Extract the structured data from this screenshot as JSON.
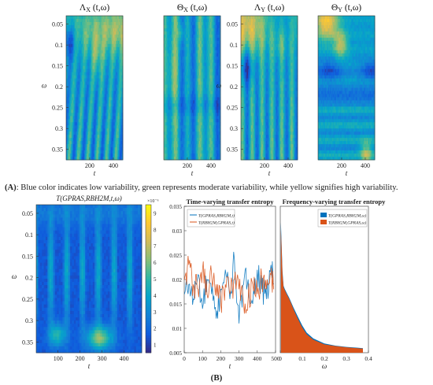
{
  "panel_a": {
    "caption_label": "(A)",
    "caption_text": ": Blue color indicates low variability, green represents moderate variability, while yellow signifies high variability."
  },
  "panel_b": {
    "caption_label": "(B)"
  },
  "palette": [
    "#352a87",
    "#0f5cdd",
    "#1481d6",
    "#06a4ca",
    "#2eb7a4",
    "#87bf77",
    "#d1bb59",
    "#fec832",
    "#f9fb0e"
  ],
  "chart_data": [
    {
      "type": "heatmap",
      "title": "Λ_X (t,ω)",
      "title_main": "Λ",
      "title_sub": "X",
      "title_args": "(t,ω)",
      "xlabel": "t",
      "ylabel": "ω",
      "xticks": [
        200,
        400
      ],
      "xlim": [
        1,
        480
      ],
      "yticks": [
        0.05,
        0.1,
        0.15,
        0.2,
        0.25,
        0.3,
        0.35
      ],
      "ylim": [
        0.03,
        0.375
      ],
      "grid": false
    },
    {
      "type": "heatmap",
      "title": "Θ_X (t,ω)",
      "title_main": "Θ",
      "title_sub": "X",
      "title_args": "(t,ω)",
      "xlabel": "t",
      "ylabel": "",
      "xticks": [
        200,
        400
      ],
      "xlim": [
        1,
        480
      ],
      "yticks": [],
      "ylim": [
        0.03,
        0.375
      ],
      "grid": false
    },
    {
      "type": "heatmap",
      "title": "Λ_Y (t,ω)",
      "title_main": "Λ",
      "title_sub": "Y",
      "title_args": "(t,ω)",
      "xlabel": "t",
      "ylabel": "ω",
      "xticks": [
        200,
        400
      ],
      "xlim": [
        1,
        480
      ],
      "yticks": [
        0.05,
        0.1,
        0.15,
        0.2,
        0.25,
        0.3,
        0.35
      ],
      "ylim": [
        0.03,
        0.375
      ],
      "grid": false
    },
    {
      "type": "heatmap",
      "title": "Θ_Y (t,ω)",
      "title_main": "Θ",
      "title_sub": "Y",
      "title_args": "(t,ω)",
      "xlabel": "t",
      "ylabel": "",
      "xticks": [
        200,
        400
      ],
      "xlim": [
        1,
        480
      ],
      "yticks": [],
      "ylim": [
        0.03,
        0.375
      ],
      "grid": false
    },
    {
      "type": "heatmap",
      "title": "T(GPRAS,RBH2M,t,ω)",
      "xlabel": "t",
      "ylabel": "ω",
      "xticks": [
        100,
        200,
        300,
        400
      ],
      "xlim": [
        1,
        480
      ],
      "yticks": [
        0.05,
        0.1,
        0.15,
        0.2,
        0.25,
        0.3,
        0.35
      ],
      "ylim": [
        0.03,
        0.375
      ],
      "colorbar": {
        "exponent": "×10⁻⁶",
        "ticks": [
          1,
          2,
          3,
          4,
          5,
          6,
          7,
          8,
          9
        ],
        "range": [
          0.5,
          9.5
        ]
      },
      "grid": false
    },
    {
      "type": "line",
      "title": "Time-varying transfer entropy",
      "xlabel": "t",
      "ylabel": "",
      "xlim": [
        0,
        500
      ],
      "ylim": [
        0.005,
        0.035
      ],
      "xticks": [
        0,
        100,
        200,
        300,
        400,
        500
      ],
      "yticks": [
        0.005,
        0.01,
        0.015,
        0.02,
        0.025,
        0.03,
        0.035
      ],
      "legend_position": "top-left",
      "series": [
        {
          "name": "T(GPRAS,RBH2M,t)",
          "color": "#0072bd",
          "x": [
            1,
            25,
            50,
            75,
            100,
            125,
            150,
            175,
            200,
            225,
            250,
            275,
            300,
            325,
            350,
            375,
            400,
            425,
            450,
            475,
            490
          ],
          "y": [
            0.017,
            0.019,
            0.016,
            0.021,
            0.014,
            0.02,
            0.017,
            0.012,
            0.018,
            0.022,
            0.016,
            0.024,
            0.011,
            0.019,
            0.02,
            0.015,
            0.022,
            0.018,
            0.016,
            0.023,
            0.019
          ]
        },
        {
          "name": "T(RBH2M,GPRAS,t)",
          "color": "#d95319",
          "x": [
            1,
            25,
            50,
            75,
            100,
            125,
            150,
            175,
            200,
            225,
            250,
            275,
            300,
            325,
            350,
            375,
            400,
            425,
            450,
            475,
            490
          ],
          "y": [
            0.02,
            0.023,
            0.019,
            0.018,
            0.022,
            0.017,
            0.021,
            0.019,
            0.015,
            0.019,
            0.017,
            0.02,
            0.018,
            0.015,
            0.016,
            0.019,
            0.017,
            0.02,
            0.018,
            0.021,
            0.018
          ]
        }
      ],
      "grid": false
    },
    {
      "type": "area",
      "title": "Frequency-varying transfer entropy",
      "xlabel": "ω",
      "ylabel": "",
      "xlim": [
        0,
        0.4
      ],
      "ylim": [
        0,
        0.035
      ],
      "xticks": [
        0,
        0.1,
        0.2,
        0.3,
        0.4
      ],
      "legend_position": "top-right",
      "series": [
        {
          "name": "T(GPRAS,RBH2M,ω)",
          "color": "#0072bd",
          "x": [
            0.003,
            0.006,
            0.01,
            0.015,
            0.02,
            0.03,
            0.04,
            0.05,
            0.06,
            0.08,
            0.1,
            0.12,
            0.15,
            0.2,
            0.25,
            0.3,
            0.35,
            0.375
          ],
          "y": [
            0.0312,
            0.026,
            0.0195,
            0.016,
            0.0153,
            0.0142,
            0.0132,
            0.012,
            0.0108,
            0.0086,
            0.0065,
            0.0048,
            0.0034,
            0.0022,
            0.0017,
            0.0014,
            0.0012,
            0.0011
          ]
        },
        {
          "name": "T(RBH2M,GPRAS,ω)",
          "color": "#d95319",
          "x": [
            0.003,
            0.006,
            0.01,
            0.015,
            0.02,
            0.03,
            0.04,
            0.05,
            0.06,
            0.08,
            0.1,
            0.12,
            0.15,
            0.2,
            0.25,
            0.3,
            0.35,
            0.375
          ],
          "y": [
            0.0295,
            0.025,
            0.0188,
            0.0156,
            0.015,
            0.0139,
            0.0129,
            0.0117,
            0.0104,
            0.0081,
            0.006,
            0.0044,
            0.0031,
            0.002,
            0.0016,
            0.0013,
            0.0011,
            0.001
          ]
        }
      ],
      "grid": false
    }
  ]
}
